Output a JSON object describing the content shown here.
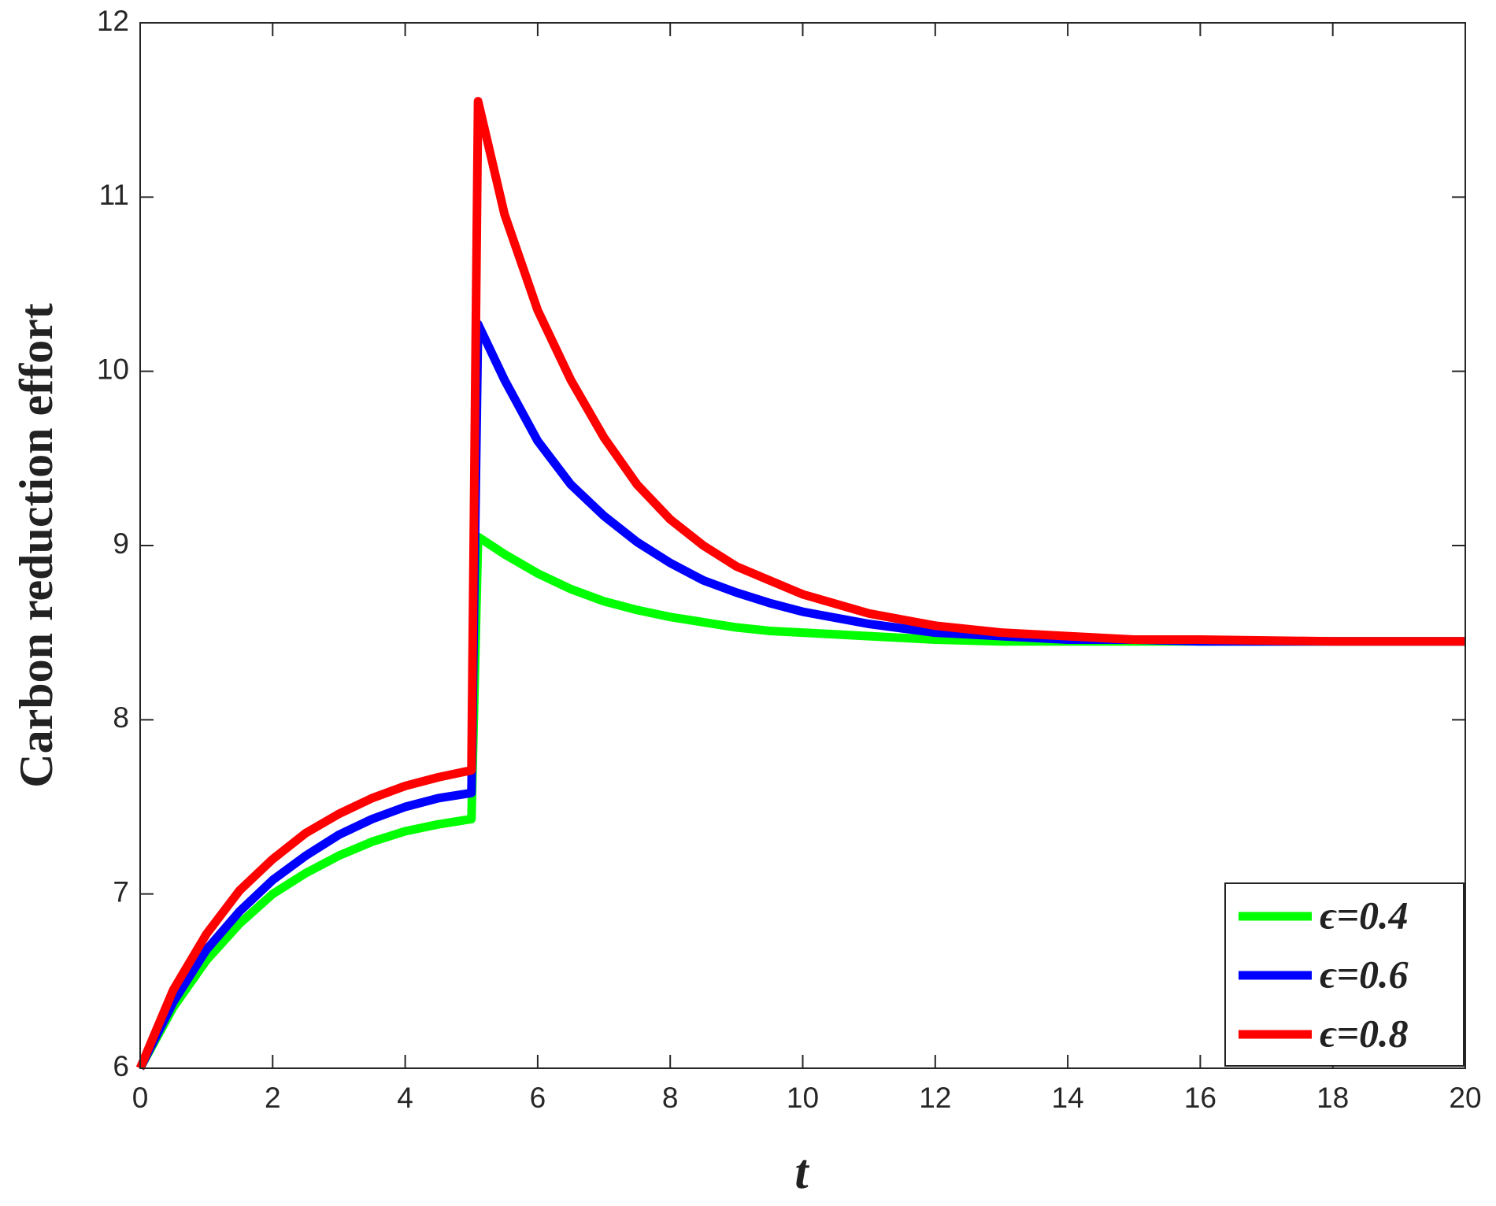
{
  "chart_data": {
    "type": "line",
    "xlabel": "t",
    "ylabel": "Carbon reduction effort",
    "x": [
      0,
      0.5,
      1,
      1.5,
      2,
      2.5,
      3,
      3.5,
      4,
      4.5,
      5,
      5.1,
      5.5,
      6,
      6.5,
      7,
      7.5,
      8,
      8.5,
      9,
      9.5,
      10,
      11,
      12,
      13,
      14,
      15,
      16,
      18,
      20
    ],
    "series": [
      {
        "name": "ϵ=0.4",
        "color": "#00ff00",
        "values": [
          6,
          6.35,
          6.62,
          6.83,
          7.0,
          7.12,
          7.22,
          7.3,
          7.36,
          7.4,
          7.43,
          9.05,
          8.95,
          8.84,
          8.75,
          8.68,
          8.63,
          8.59,
          8.56,
          8.53,
          8.51,
          8.5,
          8.48,
          8.46,
          8.45,
          8.45,
          8.45,
          8.45,
          8.45,
          8.45
        ]
      },
      {
        "name": "ϵ=0.6",
        "color": "#0000ff",
        "values": [
          6,
          6.38,
          6.68,
          6.9,
          7.08,
          7.22,
          7.34,
          7.43,
          7.5,
          7.55,
          7.58,
          10.27,
          9.95,
          9.6,
          9.35,
          9.17,
          9.02,
          8.9,
          8.8,
          8.73,
          8.67,
          8.62,
          8.55,
          8.5,
          8.48,
          8.46,
          8.46,
          8.45,
          8.45,
          8.45
        ]
      },
      {
        "name": "ϵ=0.8",
        "color": "#ff0000",
        "values": [
          6,
          6.45,
          6.77,
          7.02,
          7.2,
          7.35,
          7.46,
          7.55,
          7.62,
          7.67,
          7.71,
          11.55,
          10.9,
          10.35,
          9.95,
          9.62,
          9.35,
          9.15,
          9.0,
          8.88,
          8.8,
          8.72,
          8.61,
          8.54,
          8.5,
          8.48,
          8.46,
          8.46,
          8.45,
          8.45
        ]
      }
    ],
    "xlim": [
      0,
      20
    ],
    "xticks": [
      0,
      2,
      4,
      6,
      8,
      10,
      12,
      14,
      16,
      18,
      20
    ],
    "ylim": [
      6,
      12
    ],
    "yticks": [
      6,
      7,
      8,
      9,
      10,
      11,
      12
    ],
    "legend": "lower right"
  }
}
